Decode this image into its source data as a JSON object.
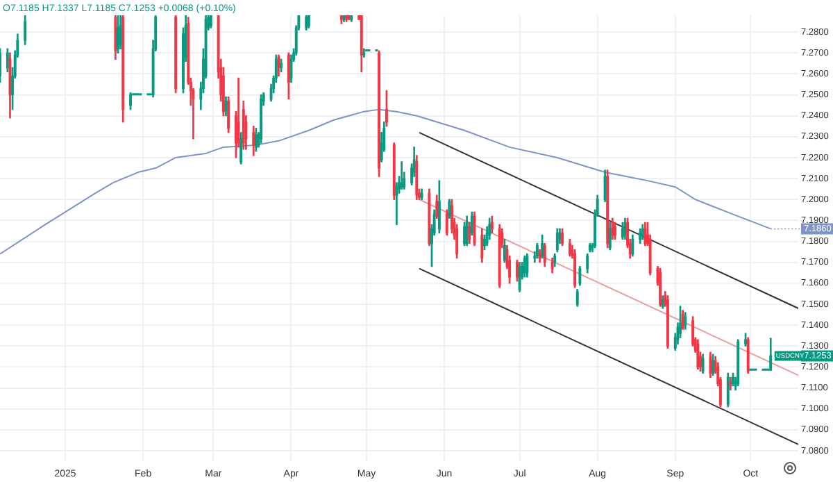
{
  "chart_data": {
    "type": "candlestick",
    "xlim": [
      "2024-12-06",
      "2025-10-20"
    ],
    "xticks": [
      {
        "value": "2025-01-01",
        "label": "2025"
      },
      {
        "value": "2025-02-01",
        "label": "Feb"
      },
      {
        "value": "2025-03-01",
        "label": "Mar"
      },
      {
        "value": "2025-04-01",
        "label": "Apr"
      },
      {
        "value": "2025-05-01",
        "label": "May"
      },
      {
        "value": "2025-06-01",
        "label": "Jun"
      },
      {
        "value": "2025-07-01",
        "label": "Jul"
      },
      {
        "value": "2025-08-01",
        "label": "Aug"
      },
      {
        "value": "2025-09-01",
        "label": "Sep"
      },
      {
        "value": "2025-10-01",
        "label": "Oct"
      }
    ],
    "ylim": [
      7.075,
      7.288
    ],
    "yticks": [
      {
        "value": 7.08,
        "label": "7.0800"
      },
      {
        "value": 7.09,
        "label": "7.0900"
      },
      {
        "value": 7.1,
        "label": "7.1000"
      },
      {
        "value": 7.11,
        "label": "7.1100"
      },
      {
        "value": 7.12,
        "label": "7.1200"
      },
      {
        "value": 7.13,
        "label": "7.1300"
      },
      {
        "value": 7.14,
        "label": "7.1400"
      },
      {
        "value": 7.15,
        "label": "7.1500"
      },
      {
        "value": 7.16,
        "label": "7.1600"
      },
      {
        "value": 7.17,
        "label": "7.1700"
      },
      {
        "value": 7.18,
        "label": "7.1800"
      },
      {
        "value": 7.19,
        "label": "7.1900"
      },
      {
        "value": 7.2,
        "label": "7.2000"
      },
      {
        "value": 7.21,
        "label": "7.2100"
      },
      {
        "value": 7.22,
        "label": "7.2200"
      },
      {
        "value": 7.23,
        "label": "7.2300"
      },
      {
        "value": 7.24,
        "label": "7.2400"
      },
      {
        "value": 7.25,
        "label": "7.2500"
      },
      {
        "value": 7.26,
        "label": "7.2600"
      },
      {
        "value": 7.27,
        "label": "7.2700"
      },
      {
        "value": 7.28,
        "label": "7.2800"
      }
    ],
    "grid": true,
    "annotations": [
      "O7.1185 H7.1337 L7.1185 C7.1253 +0.0068 (+0.10%)",
      {
        "text": "USDCNY",
        "x": "2025-10-10",
        "y": 7.1253
      }
    ],
    "series": [
      {
        "type": "line",
        "color": "#7e93c6",
        "x": [
          "2024-12-06",
          "2024-12-24",
          "2025-01-13",
          "2025-01-20",
          "2025-01-30",
          "2025-02-06",
          "2025-02-14",
          "2025-02-26",
          "2025-03-05",
          "2025-03-18",
          "2025-03-27",
          "2025-04-08",
          "2025-04-18",
          "2025-04-30",
          "2025-05-06",
          "2025-05-13",
          "2025-05-21",
          "2025-06-09",
          "2025-06-27",
          "2025-07-16",
          "2025-08-04",
          "2025-08-21",
          "2025-09-01",
          "2025-09-09",
          "2025-09-26",
          "2025-10-09"
        ],
        "values": [
          7.174,
          7.188,
          7.203,
          7.208,
          7.213,
          7.215,
          7.22,
          7.222,
          7.225,
          7.226,
          7.228,
          7.233,
          7.238,
          7.242,
          7.243,
          7.242,
          7.24,
          7.233,
          7.225,
          7.22,
          7.213,
          7.209,
          7.206,
          7.2,
          7.192,
          7.186
        ],
        "value_labels": [
          null,
          null,
          null,
          null,
          null,
          null,
          null,
          null,
          null,
          null,
          null,
          null,
          null,
          null,
          null,
          null,
          null,
          null,
          null,
          null,
          null,
          null,
          null,
          null,
          null,
          "7.1860"
        ]
      },
      {
        "type": "line",
        "color": "#333333",
        "x": [
          "2025-05-22",
          "2025-10-20"
        ],
        "values": [
          7.232,
          7.148
        ]
      },
      {
        "type": "line",
        "color": "#e8a0a0",
        "x": [
          "2025-05-22",
          "2025-10-20"
        ],
        "values": [
          7.2,
          7.116
        ]
      },
      {
        "type": "line",
        "color": "#333333",
        "x": [
          "2025-05-22",
          "2025-10-20"
        ],
        "values": [
          7.167,
          7.083
        ]
      }
    ],
    "x": [
      "2024-12-06",
      "2024-12-09",
      "2024-12-10",
      "2024-12-11",
      "2024-12-12",
      "2024-12-13",
      "2024-12-16",
      "2025-01-21",
      "2025-01-22",
      "2025-01-23",
      "2025-01-24",
      "2025-01-27",
      "2025-01-28",
      "2025-01-29",
      "2025-01-30",
      "2025-01-31",
      "2025-02-03",
      "2025-02-04",
      "2025-02-05",
      "2025-02-06",
      "2025-02-14",
      "2025-02-17",
      "2025-02-18",
      "2025-02-19",
      "2025-02-20",
      "2025-02-21",
      "2025-02-24",
      "2025-02-25",
      "2025-02-26",
      "2025-02-27",
      "2025-02-28",
      "2025-03-03",
      "2025-03-04",
      "2025-03-05",
      "2025-03-06",
      "2025-03-07",
      "2025-03-10",
      "2025-03-11",
      "2025-03-12",
      "2025-03-13",
      "2025-03-14",
      "2025-03-17",
      "2025-03-18",
      "2025-03-19",
      "2025-03-20",
      "2025-03-21",
      "2025-03-24",
      "2025-03-25",
      "2025-03-26",
      "2025-03-27",
      "2025-03-28",
      "2025-03-31",
      "2025-04-01",
      "2025-04-02",
      "2025-04-03",
      "2025-04-04",
      "2025-04-07",
      "2025-04-08",
      "2025-04-21",
      "2025-04-22",
      "2025-04-23",
      "2025-04-24",
      "2025-04-25",
      "2025-04-28",
      "2025-04-29",
      "2025-04-30",
      "2025-05-01",
      "2025-05-02",
      "2025-05-05",
      "2025-05-06",
      "2025-05-07",
      "2025-05-08",
      "2025-05-09",
      "2025-05-12",
      "2025-05-13",
      "2025-05-14",
      "2025-05-15",
      "2025-05-16",
      "2025-05-19",
      "2025-05-20",
      "2025-05-21",
      "2025-05-22",
      "2025-05-23",
      "2025-05-26",
      "2025-05-27",
      "2025-05-28",
      "2025-05-29",
      "2025-05-30",
      "2025-06-02",
      "2025-06-03",
      "2025-06-04",
      "2025-06-05",
      "2025-06-06",
      "2025-06-09",
      "2025-06-10",
      "2025-06-11",
      "2025-06-12",
      "2025-06-13",
      "2025-06-16",
      "2025-06-17",
      "2025-06-18",
      "2025-06-19",
      "2025-06-20",
      "2025-06-23",
      "2025-06-24",
      "2025-06-25",
      "2025-06-26",
      "2025-06-27",
      "2025-06-30",
      "2025-07-01",
      "2025-07-02",
      "2025-07-03",
      "2025-07-04",
      "2025-07-07",
      "2025-07-08",
      "2025-07-09",
      "2025-07-10",
      "2025-07-11",
      "2025-07-14",
      "2025-07-15",
      "2025-07-16",
      "2025-07-17",
      "2025-07-18",
      "2025-07-21",
      "2025-07-22",
      "2025-07-23",
      "2025-07-24",
      "2025-07-25",
      "2025-07-28",
      "2025-07-29",
      "2025-07-30",
      "2025-07-31",
      "2025-08-01",
      "2025-08-04",
      "2025-08-05",
      "2025-08-06",
      "2025-08-07",
      "2025-08-08",
      "2025-08-11",
      "2025-08-12",
      "2025-08-13",
      "2025-08-14",
      "2025-08-15",
      "2025-08-18",
      "2025-08-19",
      "2025-08-20",
      "2025-08-21",
      "2025-08-22",
      "2025-08-25",
      "2025-08-26",
      "2025-08-27",
      "2025-08-28",
      "2025-08-29",
      "2025-09-01",
      "2025-09-02",
      "2025-09-03",
      "2025-09-04",
      "2025-09-05",
      "2025-09-08",
      "2025-09-09",
      "2025-09-10",
      "2025-09-11",
      "2025-09-12",
      "2025-09-15",
      "2025-09-16",
      "2025-09-17",
      "2025-09-18",
      "2025-09-19",
      "2025-09-22",
      "2025-09-23",
      "2025-09-24",
      "2025-09-25",
      "2025-09-26",
      "2025-09-29",
      "2025-09-30",
      "2025-10-01",
      "2025-10-02",
      "2025-10-03",
      "2025-10-06",
      "2025-10-07",
      "2025-10-08",
      "2025-10-09"
    ],
    "ohlc": [
      [
        7.259,
        7.272,
        7.256,
        7.27
      ],
      [
        7.263,
        7.272,
        7.261,
        7.27
      ],
      [
        7.267,
        7.27,
        7.239,
        7.25
      ],
      [
        7.25,
        7.263,
        7.243,
        7.259
      ],
      [
        7.259,
        7.271,
        7.258,
        7.269
      ],
      [
        7.269,
        7.279,
        7.268,
        7.276
      ],
      [
        7.276,
        7.288,
        7.274,
        7.285
      ],
      [
        7.287,
        7.288,
        7.267,
        7.271
      ],
      [
        7.272,
        7.288,
        7.27,
        7.282
      ],
      [
        7.274,
        7.288,
        7.272,
        7.283
      ],
      [
        7.287,
        7.288,
        7.237,
        7.243
      ],
      [
        7.245,
        7.251,
        7.243,
        7.25
      ],
      [
        7.25,
        7.25,
        7.25,
        7.25
      ],
      [
        7.25,
        7.25,
        7.25,
        7.25
      ],
      [
        7.25,
        7.25,
        7.25,
        7.25
      ],
      [
        7.25,
        7.25,
        7.25,
        7.25
      ],
      [
        7.25,
        7.25,
        7.25,
        7.25
      ],
      [
        7.25,
        7.25,
        7.25,
        7.25
      ],
      [
        7.25,
        7.276,
        7.249,
        7.272
      ],
      [
        7.272,
        7.288,
        7.271,
        7.287
      ],
      [
        7.287,
        7.288,
        7.251,
        7.253
      ],
      [
        7.253,
        7.282,
        7.251,
        7.279
      ],
      [
        7.268,
        7.288,
        7.266,
        7.283
      ],
      [
        7.284,
        7.287,
        7.255,
        7.256
      ],
      [
        7.256,
        7.258,
        7.245,
        7.252
      ],
      [
        7.252,
        7.253,
        7.229,
        7.248
      ],
      [
        7.248,
        7.256,
        7.243,
        7.253
      ],
      [
        7.253,
        7.272,
        7.251,
        7.267
      ],
      [
        7.259,
        7.288,
        7.258,
        7.286
      ],
      [
        7.282,
        7.288,
        7.281,
        7.287
      ],
      [
        7.283,
        7.288,
        7.282,
        7.288
      ],
      [
        7.288,
        7.288,
        7.258,
        7.261
      ],
      [
        7.263,
        7.267,
        7.247,
        7.25
      ],
      [
        7.259,
        7.263,
        7.24,
        7.242
      ],
      [
        7.242,
        7.249,
        7.24,
        7.247
      ],
      [
        7.247,
        7.249,
        7.232,
        7.234
      ],
      [
        7.24,
        7.242,
        7.22,
        7.227
      ],
      [
        7.237,
        7.258,
        7.225,
        7.227
      ],
      [
        7.218,
        7.232,
        7.217,
        7.229
      ],
      [
        7.243,
        7.247,
        7.224,
        7.227
      ],
      [
        7.237,
        7.24,
        7.224,
        7.229
      ],
      [
        7.232,
        7.235,
        7.221,
        7.226
      ],
      [
        7.225,
        7.234,
        7.223,
        7.231
      ],
      [
        7.226,
        7.232,
        7.225,
        7.231
      ],
      [
        7.229,
        7.25,
        7.227,
        7.248
      ],
      [
        7.247,
        7.251,
        7.245,
        7.25
      ],
      [
        7.248,
        7.255,
        7.247,
        7.253
      ],
      [
        7.253,
        7.259,
        7.251,
        7.258
      ],
      [
        7.258,
        7.269,
        7.256,
        7.267
      ],
      [
        7.268,
        7.269,
        7.259,
        7.263
      ],
      [
        7.263,
        7.267,
        7.261,
        7.265
      ],
      [
        7.269,
        7.27,
        7.248,
        7.256
      ],
      [
        7.258,
        7.269,
        7.256,
        7.267
      ],
      [
        7.267,
        7.272,
        7.266,
        7.27
      ],
      [
        7.27,
        7.283,
        7.269,
        7.282
      ],
      [
        7.282,
        7.288,
        7.281,
        7.288
      ],
      [
        7.282,
        7.288,
        7.281,
        7.287
      ],
      [
        7.283,
        7.288,
        7.282,
        7.288
      ],
      [
        7.288,
        7.288,
        7.284,
        7.286
      ],
      [
        7.286,
        7.288,
        7.285,
        7.288
      ],
      [
        7.288,
        7.288,
        7.285,
        7.286
      ],
      [
        7.288,
        7.288,
        7.286,
        7.286
      ],
      [
        7.286,
        7.288,
        7.285,
        7.288
      ],
      [
        7.288,
        7.288,
        7.286,
        7.286
      ],
      [
        7.288,
        7.288,
        7.261,
        7.269
      ],
      [
        7.269,
        7.272,
        7.268,
        7.27
      ],
      [
        7.271,
        7.271,
        7.271,
        7.271
      ],
      [
        7.271,
        7.271,
        7.271,
        7.271
      ],
      [
        7.271,
        7.271,
        7.271,
        7.271
      ],
      [
        7.27,
        7.271,
        7.211,
        7.215
      ],
      [
        7.219,
        7.232,
        7.218,
        7.227
      ],
      [
        7.224,
        7.237,
        7.223,
        7.234
      ],
      [
        7.243,
        7.252,
        7.235,
        7.237
      ],
      [
        7.226,
        7.227,
        7.2,
        7.202
      ],
      [
        7.202,
        7.208,
        7.188,
        7.206
      ],
      [
        7.205,
        7.211,
        7.203,
        7.208
      ],
      [
        7.206,
        7.218,
        7.205,
        7.208
      ],
      [
        7.206,
        7.213,
        7.205,
        7.21
      ],
      [
        7.208,
        7.217,
        7.207,
        7.215
      ],
      [
        7.213,
        7.225,
        7.211,
        7.219
      ],
      [
        7.218,
        7.221,
        7.2,
        7.202
      ],
      [
        7.203,
        7.205,
        7.2,
        7.201
      ],
      [
        7.201,
        7.205,
        7.2,
        7.203
      ],
      [
        7.203,
        7.205,
        7.178,
        7.179
      ],
      [
        7.179,
        7.188,
        7.168,
        7.186
      ],
      [
        7.184,
        7.195,
        7.183,
        7.193
      ],
      [
        7.199,
        7.202,
        7.191,
        7.192
      ],
      [
        7.186,
        7.209,
        7.184,
        7.199
      ],
      [
        7.193,
        7.195,
        7.183,
        7.184
      ],
      [
        7.192,
        7.2,
        7.191,
        7.199
      ],
      [
        7.197,
        7.2,
        7.184,
        7.186
      ],
      [
        7.189,
        7.191,
        7.181,
        7.183
      ],
      [
        7.186,
        7.188,
        7.172,
        7.174
      ],
      [
        7.179,
        7.189,
        7.178,
        7.187
      ],
      [
        7.179,
        7.192,
        7.178,
        7.189
      ],
      [
        7.187,
        7.189,
        7.179,
        7.181
      ],
      [
        7.184,
        7.194,
        7.183,
        7.192
      ],
      [
        7.192,
        7.194,
        7.178,
        7.179
      ],
      [
        7.183,
        7.186,
        7.17,
        7.172
      ],
      [
        7.178,
        7.183,
        7.176,
        7.181
      ],
      [
        7.179,
        7.187,
        7.178,
        7.184
      ],
      [
        7.183,
        7.191,
        7.181,
        7.188
      ],
      [
        7.189,
        7.192,
        7.184,
        7.186
      ],
      [
        7.186,
        7.188,
        7.158,
        7.159
      ],
      [
        7.184,
        7.186,
        7.177,
        7.179
      ],
      [
        7.171,
        7.181,
        7.17,
        7.178
      ],
      [
        7.176,
        7.178,
        7.167,
        7.168
      ],
      [
        7.171,
        7.173,
        7.16,
        7.163
      ],
      [
        7.17,
        7.171,
        7.161,
        7.163
      ],
      [
        7.157,
        7.17,
        7.156,
        7.168
      ],
      [
        7.163,
        7.17,
        7.162,
        7.168
      ],
      [
        7.165,
        7.173,
        7.163,
        7.172
      ],
      [
        7.165,
        7.174,
        7.163,
        7.173
      ],
      [
        7.172,
        7.175,
        7.17,
        7.173
      ],
      [
        7.173,
        7.179,
        7.172,
        7.178
      ],
      [
        7.174,
        7.176,
        7.17,
        7.172
      ],
      [
        7.173,
        7.183,
        7.172,
        7.179
      ],
      [
        7.178,
        7.179,
        7.168,
        7.17
      ],
      [
        7.17,
        7.172,
        7.165,
        7.167
      ],
      [
        7.17,
        7.174,
        7.168,
        7.173
      ],
      [
        7.176,
        7.186,
        7.175,
        7.184
      ],
      [
        7.181,
        7.186,
        7.179,
        7.184
      ],
      [
        7.184,
        7.186,
        7.178,
        7.179
      ],
      [
        7.179,
        7.181,
        7.173,
        7.174
      ],
      [
        7.176,
        7.178,
        7.172,
        7.173
      ],
      [
        7.174,
        7.176,
        7.158,
        7.159
      ],
      [
        7.15,
        7.157,
        7.149,
        7.156
      ],
      [
        7.16,
        7.168,
        7.159,
        7.167
      ],
      [
        7.167,
        7.174,
        7.165,
        7.173
      ],
      [
        7.176,
        7.179,
        7.175,
        7.178
      ],
      [
        7.177,
        7.179,
        7.175,
        7.178
      ],
      [
        7.178,
        7.195,
        7.177,
        7.193
      ],
      [
        7.193,
        7.202,
        7.192,
        7.2
      ],
      [
        7.2,
        7.214,
        7.199,
        7.211
      ],
      [
        7.211,
        7.214,
        7.177,
        7.179
      ],
      [
        7.177,
        7.189,
        7.176,
        7.186
      ],
      [
        7.189,
        7.191,
        7.181,
        7.183
      ],
      [
        7.187,
        7.189,
        7.181,
        7.183
      ],
      [
        7.182,
        7.189,
        7.181,
        7.186
      ],
      [
        7.183,
        7.191,
        7.181,
        7.189
      ],
      [
        7.189,
        7.191,
        7.177,
        7.178
      ],
      [
        7.179,
        7.181,
        7.172,
        7.174
      ],
      [
        7.174,
        7.183,
        7.173,
        7.181
      ],
      [
        7.181,
        7.186,
        7.179,
        7.184
      ],
      [
        7.183,
        7.188,
        7.181,
        7.186
      ],
      [
        7.186,
        7.189,
        7.178,
        7.179
      ],
      [
        7.183,
        7.189,
        7.178,
        7.179
      ],
      [
        7.181,
        7.183,
        7.164,
        7.165
      ],
      [
        7.167,
        7.168,
        7.159,
        7.16
      ],
      [
        7.165,
        7.167,
        7.149,
        7.15
      ],
      [
        7.149,
        7.154,
        7.148,
        7.152
      ],
      [
        7.154,
        7.156,
        7.149,
        7.15
      ],
      [
        7.152,
        7.154,
        7.129,
        7.13
      ],
      [
        7.129,
        7.136,
        7.128,
        7.134
      ],
      [
        7.133,
        7.141,
        7.131,
        7.139
      ],
      [
        7.136,
        7.149,
        7.134,
        7.141
      ],
      [
        7.145,
        7.147,
        7.138,
        7.139
      ],
      [
        7.14,
        7.146,
        7.138,
        7.144
      ],
      [
        7.142,
        7.144,
        7.13,
        7.131
      ],
      [
        7.133,
        7.134,
        7.127,
        7.128
      ],
      [
        7.131,
        7.133,
        7.119,
        7.12
      ],
      [
        7.125,
        7.127,
        7.118,
        7.12
      ],
      [
        7.118,
        7.126,
        7.117,
        7.124
      ],
      [
        7.125,
        7.127,
        7.115,
        7.117
      ],
      [
        7.117,
        7.126,
        7.116,
        7.123
      ],
      [
        7.123,
        7.125,
        7.117,
        7.118
      ],
      [
        7.12,
        7.122,
        7.111,
        7.112
      ],
      [
        7.114,
        7.115,
        7.101,
        7.102
      ],
      [
        7.102,
        7.117,
        7.101,
        7.115
      ],
      [
        7.113,
        7.115,
        7.109,
        7.111
      ],
      [
        7.112,
        7.117,
        7.111,
        7.115
      ],
      [
        7.111,
        7.115,
        7.109,
        7.113
      ],
      [
        7.112,
        7.133,
        7.111,
        7.132
      ],
      [
        7.131,
        7.136,
        7.13,
        7.133
      ],
      [
        7.133,
        7.134,
        7.117,
        7.118
      ],
      [
        7.1185,
        7.1185,
        7.1185,
        7.1185
      ],
      [
        7.1185,
        7.1185,
        7.1185,
        7.1185
      ],
      [
        7.1185,
        7.1185,
        7.1185,
        7.1185
      ],
      [
        7.1185,
        7.1185,
        7.1185,
        7.1185
      ],
      [
        7.1185,
        7.1185,
        7.1185,
        7.1185
      ],
      [
        7.1185,
        7.1185,
        7.1185,
        7.1185
      ],
      [
        7.1185,
        7.1337,
        7.1185,
        7.1253
      ]
    ],
    "value_labels": [
      null,
      null,
      null,
      null,
      null,
      null,
      null,
      null,
      null,
      null,
      null,
      null,
      null,
      null,
      null,
      null,
      null,
      null,
      null,
      null,
      null,
      null,
      null,
      null,
      null,
      null,
      null,
      null,
      null,
      null,
      null,
      null,
      null,
      null,
      null,
      null,
      null,
      null,
      null,
      null,
      null,
      null,
      null,
      null,
      null,
      null,
      null,
      null,
      null,
      null,
      null,
      null,
      null,
      null,
      null,
      null,
      null,
      null,
      null,
      null,
      null,
      null,
      null,
      null,
      null,
      null,
      null,
      null,
      null,
      null,
      null,
      null,
      null,
      null,
      null,
      null,
      null,
      null,
      null,
      null,
      null,
      null,
      null,
      null,
      null,
      null,
      null,
      null,
      null,
      null,
      null,
      null,
      null,
      null,
      null,
      null,
      null,
      null,
      null,
      null,
      null,
      null,
      null,
      null,
      null,
      null,
      null,
      null,
      null,
      null,
      null,
      null,
      null,
      null,
      null,
      null,
      null,
      null,
      null,
      null,
      null,
      null,
      null,
      null,
      null,
      null,
      null,
      null,
      null,
      null,
      null,
      null,
      null,
      null,
      null,
      null,
      null,
      null,
      null,
      null,
      null,
      null,
      null,
      null,
      null,
      null,
      null,
      null,
      null,
      null,
      null,
      null,
      null,
      null,
      null,
      null,
      null,
      null,
      null,
      null,
      null,
      null,
      null,
      null,
      null,
      null,
      null,
      null,
      null,
      null,
      null,
      null,
      null,
      null,
      null,
      null,
      null,
      null,
      null,
      null,
      null,
      "7.1253"
    ],
    "colors": [
      "#089981",
      "#089981",
      "#f23645",
      "#089981",
      "#089981",
      "#089981",
      "#089981",
      "#f23645",
      "#089981",
      "#089981",
      "#f23645",
      "#089981",
      "#089981",
      "#089981",
      "#089981",
      "#089981",
      "#089981",
      "#089981",
      "#089981",
      "#089981",
      "#f23645",
      "#089981",
      "#089981",
      "#f23645",
      "#f23645",
      "#f23645",
      "#089981",
      "#089981",
      "#089981",
      "#089981",
      "#089981",
      "#f23645",
      "#f23645",
      "#f23645",
      "#089981",
      "#f23645",
      "#f23645",
      "#f23645",
      "#089981",
      "#f23645",
      "#f23645",
      "#f23645",
      "#089981",
      "#089981",
      "#089981",
      "#089981",
      "#089981",
      "#089981",
      "#089981",
      "#f23645",
      "#089981",
      "#f23645",
      "#089981",
      "#089981",
      "#089981",
      "#089981",
      "#089981",
      "#089981",
      "#f23645",
      "#089981",
      "#f23645",
      "#f23645",
      "#089981",
      "#f23645",
      "#f23645",
      "#089981",
      "#089981",
      "#089981",
      "#089981",
      "#f23645",
      "#089981",
      "#089981",
      "#f23645",
      "#f23645",
      "#089981",
      "#089981",
      "#089981",
      "#089981",
      "#089981",
      "#089981",
      "#f23645",
      "#f23645",
      "#089981",
      "#f23645",
      "#089981",
      "#089981",
      "#f23645",
      "#089981",
      "#f23645",
      "#089981",
      "#f23645",
      "#f23645",
      "#f23645",
      "#089981",
      "#089981",
      "#f23645",
      "#089981",
      "#f23645",
      "#f23645",
      "#089981",
      "#089981",
      "#089981",
      "#f23645",
      "#f23645",
      "#f23645",
      "#089981",
      "#f23645",
      "#f23645",
      "#f23645",
      "#089981",
      "#089981",
      "#089981",
      "#089981",
      "#089981",
      "#089981",
      "#f23645",
      "#089981",
      "#f23645",
      "#f23645",
      "#089981",
      "#089981",
      "#089981",
      "#f23645",
      "#f23645",
      "#f23645",
      "#f23645",
      "#089981",
      "#089981",
      "#089981",
      "#089981",
      "#089981",
      "#089981",
      "#089981",
      "#089981",
      "#f23645",
      "#089981",
      "#f23645",
      "#f23645",
      "#089981",
      "#089981",
      "#f23645",
      "#f23645",
      "#089981",
      "#089981",
      "#089981",
      "#f23645",
      "#f23645",
      "#f23645",
      "#f23645",
      "#f23645",
      "#089981",
      "#f23645",
      "#f23645",
      "#089981",
      "#089981",
      "#089981",
      "#f23645",
      "#089981",
      "#f23645",
      "#f23645",
      "#f23645",
      "#f23645",
      "#089981",
      "#f23645",
      "#089981",
      "#f23645",
      "#f23645",
      "#f23645",
      "#089981",
      "#f23645",
      "#089981",
      "#089981",
      "#089981",
      "#089981",
      "#f23645",
      "#089981",
      "#089981",
      "#089981",
      "#089981",
      "#089981",
      "#089981",
      "#089981"
    ]
  }
}
